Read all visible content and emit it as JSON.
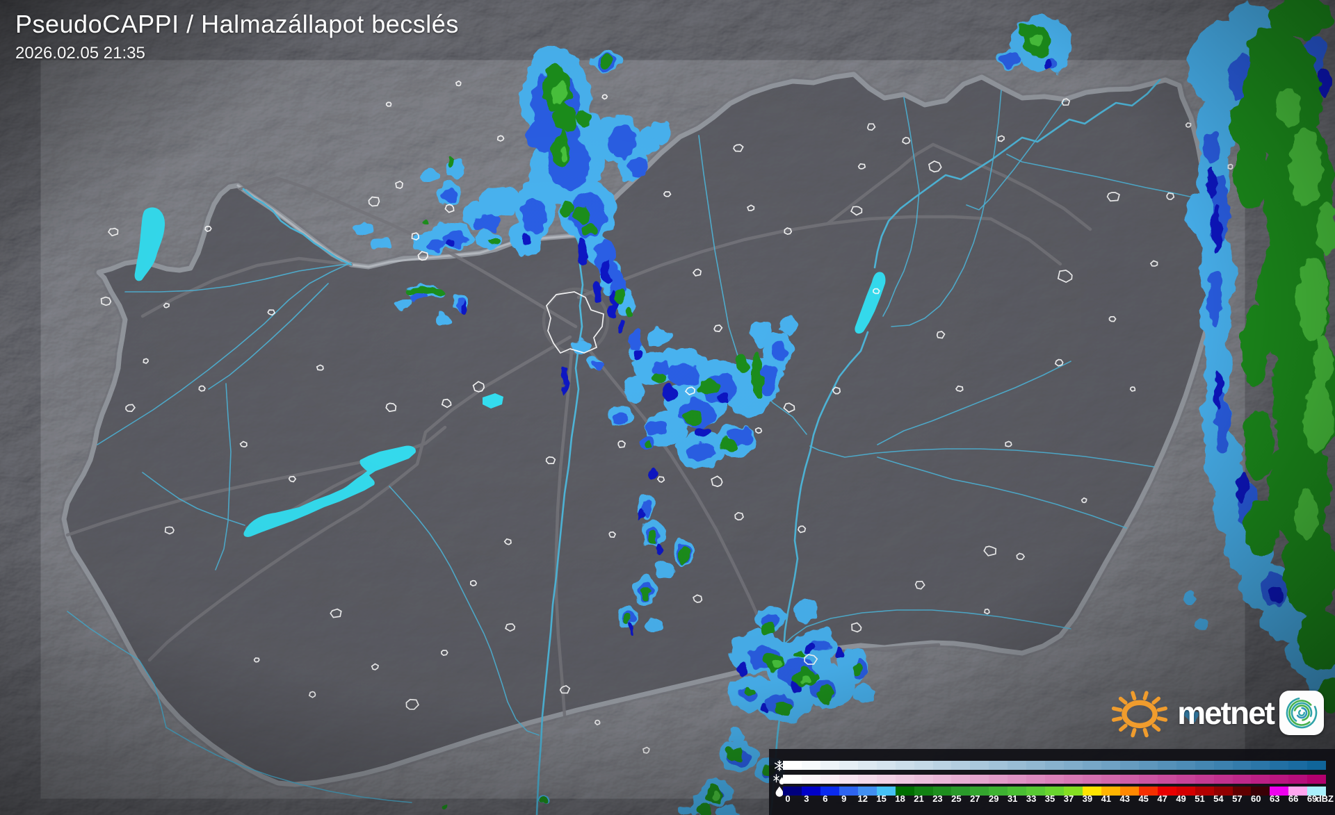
{
  "header": {
    "title": "PseudoCAPPI  / Halmazállapot becslés",
    "timestamp": "2026.02.05 21:35"
  },
  "brand": {
    "wordmark": "metnet",
    "sun_icon_color": "#F09C2D",
    "app_icon_spiral_colors": [
      "#2FA3A8",
      "#47B14E",
      "#2E96B8"
    ]
  },
  "legend": {
    "unit_label": "dBZ",
    "tick_labels": [
      "0",
      "3",
      "6",
      "9",
      "12",
      "15",
      "18",
      "21",
      "23",
      "25",
      "27",
      "29",
      "31",
      "33",
      "35",
      "37",
      "39",
      "41",
      "43",
      "45",
      "47",
      "49",
      "51",
      "54",
      "57",
      "60",
      "63",
      "66",
      "69"
    ],
    "rows": [
      {
        "id": "snow",
        "icon": "snowflake-icon",
        "colors": [
          "#FFFFFF",
          "#F7FAFC",
          "#EEF4F8",
          "#E6EFF5",
          "#DDE9F1",
          "#D5E4EE",
          "#CCDEEA",
          "#C4D9E7",
          "#BBD3E3",
          "#B3CEE0",
          "#AAC8DC",
          "#A2C3D9",
          "#99BDD5",
          "#91B8D2",
          "#88B2CE",
          "#80ADCB",
          "#77A7C7",
          "#6FA2C4",
          "#669CC0",
          "#5E97BD",
          "#5591B9",
          "#4D8CB6",
          "#4486B2",
          "#3C81AF",
          "#337BAB",
          "#2B76A8",
          "#2270A4",
          "#1A6BA1",
          "#10659A"
        ]
      },
      {
        "id": "mixed",
        "icon": "snow-rain-mix-icon",
        "colors": [
          "#FFFFFF",
          "#FCF6FA",
          "#FAEDF5",
          "#F7E4F0",
          "#F4DBEB",
          "#F2D2E6",
          "#EFC9E1",
          "#ECC0DC",
          "#EAB7D8",
          "#E7AED3",
          "#E4A5CE",
          "#E29CC9",
          "#DF93C4",
          "#DC8ABF",
          "#DA81BA",
          "#D778B5",
          "#D470B1",
          "#D267AC",
          "#CF5EA7",
          "#CC55A2",
          "#CA4C9D",
          "#C74398",
          "#C43A93",
          "#C2318E",
          "#BF288A",
          "#BC1F85",
          "#BA1680",
          "#B70D7B",
          "#B4006E"
        ]
      },
      {
        "id": "rain",
        "icon": "raindrop-icon",
        "colors": [
          "#00007D",
          "#0000C8",
          "#0A2AEE",
          "#2E64F0",
          "#418FF2",
          "#45C1F5",
          "#006E00",
          "#128212",
          "#1E8E1E",
          "#2A9A2A",
          "#34A52E",
          "#3EB232",
          "#4ABE33",
          "#58C933",
          "#69D42E",
          "#85DE22",
          "#FFE400",
          "#FFB400",
          "#FF8800",
          "#F53000",
          "#E80000",
          "#D40000",
          "#B20000",
          "#920000",
          "#600000",
          "#3A0005",
          "#EE00EE",
          "#FFA6EE",
          "#A8F0FC"
        ]
      }
    ]
  },
  "map": {
    "country": "Hungary",
    "colors": {
      "background": "#232329",
      "land": "#3E3E46",
      "border": "#8E939A",
      "border_casing": "#C4CAD0",
      "road": "#76767C",
      "river": "#4FB7DA",
      "lake": "#35DFF2",
      "city_outline": "#FFFFFF",
      "echo_light_blue": "#49B4F2",
      "echo_mid_blue": "#2B5FE6",
      "echo_dark_blue": "#0A17C4",
      "echo_green": "#1E8F1E",
      "echo_light_green": "#49C43C"
    }
  }
}
